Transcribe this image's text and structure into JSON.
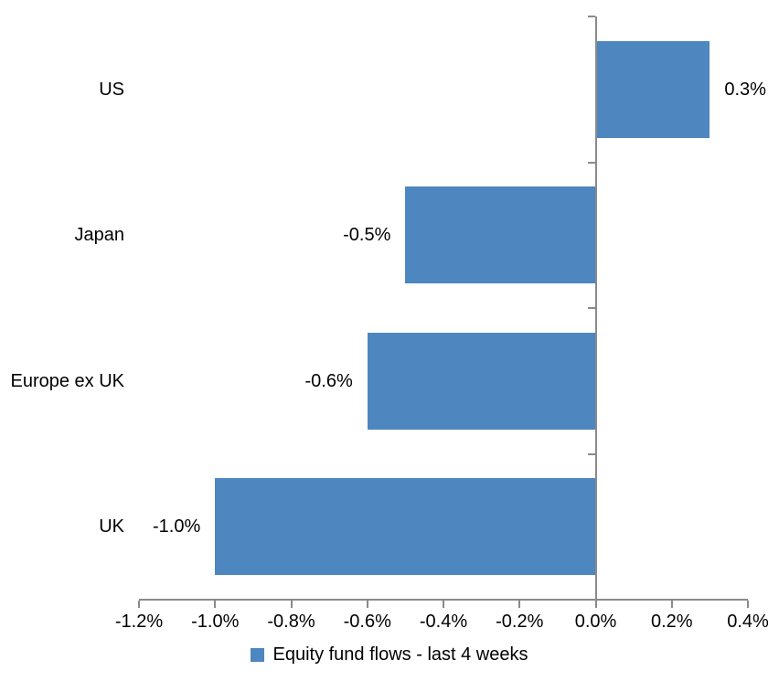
{
  "chart_data": {
    "type": "bar",
    "orientation": "horizontal",
    "title": "",
    "categories": [
      "US",
      "Japan",
      "Europe ex UK",
      "UK"
    ],
    "series": [
      {
        "name": "Equity fund flows - last 4 weeks",
        "values": [
          0.3,
          -0.5,
          -0.6,
          -1.0
        ],
        "data_labels": [
          "0.3%",
          "-0.5%",
          "-0.6%",
          "-1.0%"
        ]
      }
    ],
    "xlabel": "",
    "ylabel": "",
    "xlim": [
      -1.2,
      0.4
    ],
    "x_ticks": [
      -1.2,
      -1.0,
      -0.8,
      -0.6,
      -0.4,
      -0.2,
      0.0,
      0.2,
      0.4
    ],
    "x_tick_labels": [
      "-1.2%",
      "-1.0%",
      "-0.8%",
      "-0.6%",
      "-0.4%",
      "-0.2%",
      "0.0%",
      "0.2%",
      "0.4%"
    ],
    "grid": false,
    "legend_position": "bottom",
    "legend": [
      "Equity fund flows - last 4 weeks"
    ],
    "colors": {
      "bar": "#4E86C0",
      "axis": "#8a8a8a",
      "text": "#000000",
      "background": "#ffffff"
    }
  }
}
